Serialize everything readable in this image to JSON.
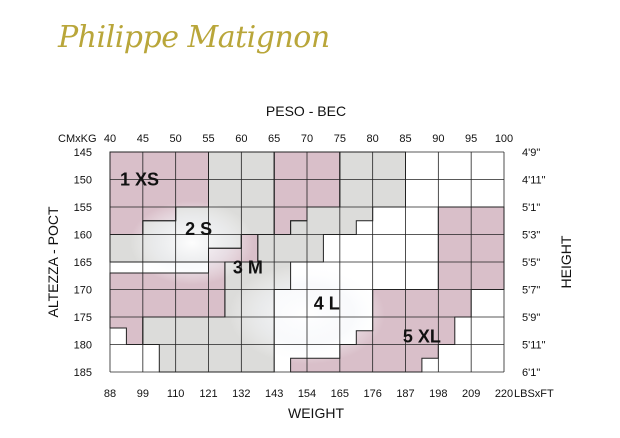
{
  "brand": {
    "logo_text": "Philippe Matignon"
  },
  "chart_data": {
    "type": "table",
    "top_axis": {
      "title": "PESO - BEC",
      "unit_label": "CMxKG",
      "ticks": [
        "40",
        "45",
        "50",
        "55",
        "60",
        "65",
        "70",
        "75",
        "80",
        "85",
        "90",
        "95",
        "100"
      ]
    },
    "bottom_axis": {
      "title": "WEIGHT",
      "unit_label": "LBSxFT",
      "ticks": [
        "88",
        "99",
        "110",
        "121",
        "132",
        "143",
        "154",
        "165",
        "176",
        "187",
        "198",
        "209",
        "220"
      ]
    },
    "left_axis": {
      "title": "ALTEZZA - POCT",
      "ticks": [
        "145",
        "150",
        "155",
        "160",
        "165",
        "170",
        "175",
        "180",
        "185"
      ]
    },
    "right_axis": {
      "title": "HEIGHT",
      "ticks": [
        "4'9\"",
        "4'11\"",
        "5'1\"",
        "5'3\"",
        "5'5\"",
        "5'7\"",
        "5'9\"",
        "5'11\"",
        "6'1\""
      ]
    },
    "grid": true,
    "colors": {
      "pink": "#d9bfc9",
      "grey": "#dcdcda",
      "line": "#222222"
    },
    "sizes": [
      {
        "label": "1 XS",
        "fill": "pink",
        "polygon_kg_cm": [
          [
            40,
            145
          ],
          [
            55,
            145
          ],
          [
            55,
            155
          ],
          [
            50,
            155
          ],
          [
            50,
            157.5
          ],
          [
            45,
            157.5
          ],
          [
            45,
            160
          ],
          [
            40,
            160
          ]
        ],
        "label_at_kg_cm": [
          44.5,
          150
        ]
      },
      {
        "label": "2 S",
        "fill": "grey",
        "polygon_kg_cm": [
          [
            55,
            145
          ],
          [
            65,
            145
          ],
          [
            65,
            160
          ],
          [
            60,
            160
          ],
          [
            60,
            162.5
          ],
          [
            55,
            162.5
          ],
          [
            55,
            165
          ],
          [
            40,
            165
          ],
          [
            40,
            160
          ],
          [
            45,
            160
          ],
          [
            45,
            157.5
          ],
          [
            50,
            157.5
          ],
          [
            50,
            155
          ],
          [
            55,
            155
          ]
        ],
        "label_at_kg_cm": [
          53.5,
          159
        ]
      },
      {
        "label": "3 M",
        "fill": "pink",
        "polygon_kg_cm": [
          [
            65,
            145
          ],
          [
            75,
            145
          ],
          [
            75,
            155
          ],
          [
            70,
            155
          ],
          [
            70,
            157.5
          ],
          [
            67.5,
            157.5
          ],
          [
            67.5,
            160
          ],
          [
            62.5,
            160
          ],
          [
            62.5,
            165
          ],
          [
            57.5,
            165
          ],
          [
            57.5,
            175
          ],
          [
            45,
            175
          ],
          [
            45,
            180
          ],
          [
            42.5,
            180
          ],
          [
            42.5,
            177
          ],
          [
            40,
            177
          ],
          [
            40,
            167
          ],
          [
            55,
            167
          ],
          [
            55,
            162.5
          ],
          [
            60,
            162.5
          ],
          [
            60,
            160
          ],
          [
            65,
            160
          ]
        ],
        "label_at_kg_cm": [
          61,
          166
        ]
      },
      {
        "label": "4 L",
        "fill": "grey",
        "polygon_kg_cm": [
          [
            75,
            145
          ],
          [
            85,
            145
          ],
          [
            85,
            155
          ],
          [
            80,
            155
          ],
          [
            80,
            157.5
          ],
          [
            77.5,
            157.5
          ],
          [
            77.5,
            160
          ],
          [
            72.5,
            160
          ],
          [
            72.5,
            165
          ],
          [
            67.5,
            165
          ],
          [
            67.5,
            170
          ],
          [
            65,
            170
          ],
          [
            65,
            185
          ],
          [
            47.5,
            185
          ],
          [
            47.5,
            180
          ],
          [
            45,
            180
          ],
          [
            45,
            175
          ],
          [
            57.5,
            175
          ],
          [
            57.5,
            165
          ],
          [
            62.5,
            165
          ],
          [
            62.5,
            160
          ],
          [
            67.5,
            160
          ],
          [
            67.5,
            157.5
          ],
          [
            70,
            157.5
          ],
          [
            70,
            155
          ],
          [
            75,
            155
          ]
        ],
        "label_at_kg_cm": [
          73,
          172.5
        ]
      },
      {
        "label": "5 XL",
        "fill": "pink",
        "polygon_kg_cm": [
          [
            90,
            155
          ],
          [
            100,
            155
          ],
          [
            100,
            170
          ],
          [
            95,
            170
          ],
          [
            95,
            175
          ],
          [
            92.5,
            175
          ],
          [
            92.5,
            180
          ],
          [
            90,
            180
          ],
          [
            90,
            182.5
          ],
          [
            87.5,
            182.5
          ],
          [
            87.5,
            185
          ],
          [
            67.5,
            185
          ],
          [
            67.5,
            182.5
          ],
          [
            75,
            182.5
          ],
          [
            75,
            180
          ],
          [
            77.5,
            180
          ],
          [
            77.5,
            177.5
          ],
          [
            80,
            177.5
          ],
          [
            80,
            170
          ],
          [
            90,
            170
          ]
        ],
        "label_at_kg_cm": [
          87.5,
          178.5
        ]
      }
    ]
  }
}
